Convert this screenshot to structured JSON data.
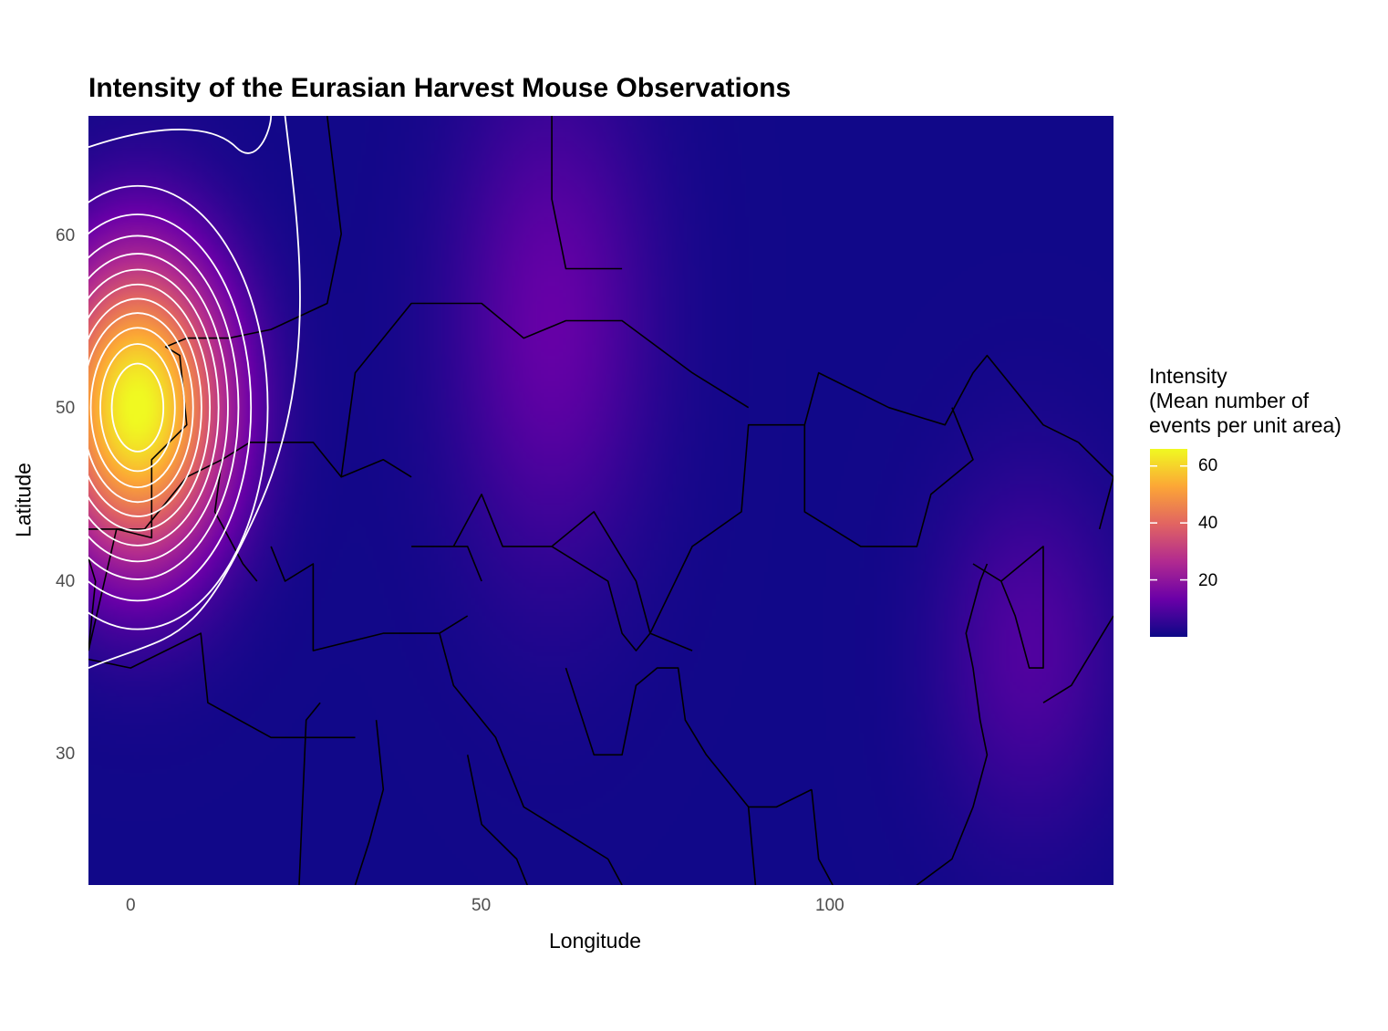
{
  "title": "Intensity of the Eurasian Harvest Mouse Observations",
  "x_axis_title": "Longitude",
  "y_axis_title": "Latitude",
  "legend": {
    "title_lines": [
      "Intensity",
      "(Mean number of",
      "events per unit area)"
    ],
    "ticks": [
      "60",
      "40",
      "20"
    ],
    "tick_values": [
      60,
      40,
      20
    ],
    "range": [
      0,
      66
    ],
    "palette": [
      "#0d0887",
      "#6a00a8",
      "#b12a90",
      "#e16462",
      "#fca636",
      "#f0f921"
    ]
  },
  "chart_data": {
    "type": "heatmap",
    "title": "Intensity of the Eurasian Harvest Mouse Observations",
    "xlabel": "Longitude",
    "ylabel": "Latitude",
    "xlim": [
      -6,
      140
    ],
    "ylim": [
      22.5,
      66.8
    ],
    "x_ticks": [
      0,
      50,
      100
    ],
    "x_tick_labels": [
      "0",
      "50",
      "100"
    ],
    "y_ticks": [
      30,
      40,
      50,
      60
    ],
    "y_tick_labels": [
      "30",
      "40",
      "50",
      "60"
    ],
    "intensity_peak": {
      "lon": 1,
      "lat": 50,
      "value": 66
    },
    "secondary_hotspots": [
      {
        "lon": 60,
        "lat": 55,
        "value": 12
      },
      {
        "lon": 128,
        "lat": 36,
        "value": 9
      }
    ],
    "contour_lines": "white",
    "background_layer": "country borders",
    "grid": false
  }
}
